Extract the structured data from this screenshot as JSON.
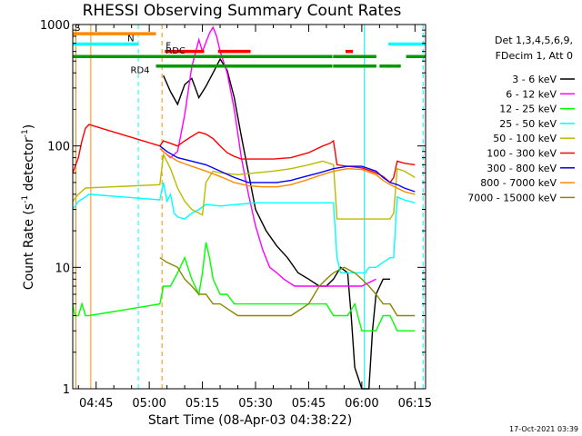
{
  "chart_data": {
    "type": "line",
    "title": "RHESSI Observing Summary Count Rates",
    "xlabel": "Start Time (08-Apr-03 04:38:22)",
    "ylabel_main": "Count Rate (s",
    "ylabel_sup1": "-1",
    "ylabel_mid": " detector",
    "ylabel_sup2": "-1",
    "ylabel_end": ")",
    "yscale": "log",
    "ylim": [
      1,
      1000
    ],
    "xlim_minutes": [
      278.4,
      378.0
    ],
    "x_ticks": [
      {
        "label": "04:45",
        "minute": 285
      },
      {
        "label": "05:00",
        "minute": 300
      },
      {
        "label": "05:15",
        "minute": 315
      },
      {
        "label": "05:30",
        "minute": 330
      },
      {
        "label": "05:45",
        "minute": 345
      },
      {
        "label": "06:00",
        "minute": 360
      },
      {
        "label": "06:15",
        "minute": 375
      }
    ],
    "y_ticks": [
      {
        "label": "1",
        "value": 1
      },
      {
        "label": "10",
        "value": 10
      },
      {
        "label": "100",
        "value": 100
      },
      {
        "label": "1000",
        "value": 1000
      }
    ],
    "legend_header": [
      "Det 1,3,4,5,6,9,",
      "FDecim 1, Att 0"
    ],
    "series": [
      {
        "name": "3 - 6 keV",
        "color": "#000000",
        "points": [
          [
            304,
            380
          ],
          [
            306,
            280
          ],
          [
            308,
            220
          ],
          [
            310,
            320
          ],
          [
            312,
            360
          ],
          [
            314,
            250
          ],
          [
            316,
            310
          ],
          [
            318,
            400
          ],
          [
            320,
            520
          ],
          [
            322,
            420
          ],
          [
            324,
            250
          ],
          [
            326,
            120
          ],
          [
            328,
            60
          ],
          [
            330,
            30
          ],
          [
            333,
            20
          ],
          [
            336,
            15
          ],
          [
            339,
            12
          ],
          [
            342,
            9
          ],
          [
            345,
            8
          ],
          [
            348,
            7
          ],
          [
            350,
            7
          ],
          [
            352,
            8
          ],
          [
            354,
            10
          ],
          [
            356,
            9
          ],
          [
            357,
            4
          ],
          [
            358,
            1.5
          ],
          [
            360,
            1
          ],
          [
            362,
            1
          ],
          [
            363,
            3
          ],
          [
            364,
            6
          ],
          [
            366,
            8
          ],
          [
            368,
            8
          ]
        ]
      },
      {
        "name": "6 - 12 keV",
        "color": "#ff00ff",
        "points": [
          [
            304,
            90
          ],
          [
            306,
            80
          ],
          [
            308,
            90
          ],
          [
            310,
            180
          ],
          [
            312,
            450
          ],
          [
            314,
            750
          ],
          [
            315,
            600
          ],
          [
            317,
            850
          ],
          [
            318,
            950
          ],
          [
            319,
            800
          ],
          [
            320,
            600
          ],
          [
            322,
            400
          ],
          [
            324,
            200
          ],
          [
            326,
            80
          ],
          [
            328,
            40
          ],
          [
            330,
            22
          ],
          [
            332,
            14
          ],
          [
            334,
            10
          ],
          [
            336,
            9
          ],
          [
            338,
            8
          ],
          [
            341,
            7
          ],
          [
            344,
            7
          ],
          [
            348,
            7
          ],
          [
            352,
            7
          ],
          [
            356,
            7
          ],
          [
            360,
            7
          ],
          [
            364,
            8
          ]
        ]
      },
      {
        "name": "12 - 25 keV",
        "color": "#00ff00",
        "points": [
          [
            278.4,
            5
          ],
          [
            279,
            4
          ],
          [
            280,
            4
          ],
          [
            281,
            5
          ],
          [
            282,
            4
          ],
          [
            283,
            4
          ],
          [
            303,
            5
          ],
          [
            304,
            7
          ],
          [
            306,
            7
          ],
          [
            308,
            9
          ],
          [
            310,
            12
          ],
          [
            312,
            8
          ],
          [
            314,
            6
          ],
          [
            315,
            9
          ],
          [
            316,
            16
          ],
          [
            317,
            12
          ],
          [
            318,
            8
          ],
          [
            320,
            6
          ],
          [
            322,
            6
          ],
          [
            324,
            5
          ],
          [
            330,
            5
          ],
          [
            340,
            5
          ],
          [
            350,
            5
          ],
          [
            352,
            4
          ],
          [
            356,
            4
          ],
          [
            358,
            5
          ],
          [
            360,
            3
          ],
          [
            362,
            3
          ],
          [
            364,
            3
          ],
          [
            366,
            4
          ],
          [
            368,
            4
          ],
          [
            370,
            3
          ],
          [
            372,
            3
          ],
          [
            375,
            3
          ]
        ]
      },
      {
        "name": "25 - 50 keV",
        "color": "#00ffff",
        "points": [
          [
            278.4,
            30
          ],
          [
            280,
            35
          ],
          [
            282,
            38
          ],
          [
            283,
            40
          ],
          [
            303,
            36
          ],
          [
            304,
            50
          ],
          [
            305,
            35
          ],
          [
            306,
            40
          ],
          [
            307,
            28
          ],
          [
            308,
            26
          ],
          [
            310,
            25
          ],
          [
            312,
            28
          ],
          [
            314,
            30
          ],
          [
            316,
            33
          ],
          [
            320,
            32
          ],
          [
            325,
            33
          ],
          [
            330,
            34
          ],
          [
            335,
            34
          ],
          [
            340,
            34
          ],
          [
            345,
            34
          ],
          [
            352,
            34
          ],
          [
            353,
            12
          ],
          [
            354,
            9
          ],
          [
            356,
            9
          ],
          [
            358,
            9
          ],
          [
            360,
            9
          ],
          [
            361,
            9
          ],
          [
            362,
            10
          ],
          [
            364,
            10
          ],
          [
            366,
            11
          ],
          [
            368,
            12
          ],
          [
            369,
            12
          ],
          [
            370,
            38
          ],
          [
            372,
            36
          ],
          [
            375,
            34
          ]
        ]
      },
      {
        "name": "50 - 100 keV",
        "color": "#bbbb00",
        "points": [
          [
            278.4,
            35
          ],
          [
            280,
            40
          ],
          [
            282,
            45
          ],
          [
            303,
            48
          ],
          [
            304,
            85
          ],
          [
            306,
            65
          ],
          [
            308,
            45
          ],
          [
            310,
            35
          ],
          [
            312,
            30
          ],
          [
            314,
            28
          ],
          [
            315,
            27
          ],
          [
            316,
            50
          ],
          [
            318,
            62
          ],
          [
            320,
            60
          ],
          [
            325,
            58
          ],
          [
            330,
            60
          ],
          [
            335,
            62
          ],
          [
            340,
            65
          ],
          [
            345,
            70
          ],
          [
            349,
            75
          ],
          [
            352,
            70
          ],
          [
            353,
            25
          ],
          [
            355,
            25
          ],
          [
            360,
            25
          ],
          [
            365,
            25
          ],
          [
            368,
            25
          ],
          [
            369,
            28
          ],
          [
            370,
            65
          ],
          [
            372,
            62
          ],
          [
            375,
            55
          ]
        ]
      },
      {
        "name": "100 - 300 keV",
        "color": "#ff0000",
        "points": [
          [
            278.4,
            60
          ],
          [
            280,
            80
          ],
          [
            281,
            110
          ],
          [
            282,
            140
          ],
          [
            283,
            150
          ],
          [
            303,
            100
          ],
          [
            304,
            110
          ],
          [
            306,
            105
          ],
          [
            308,
            100
          ],
          [
            310,
            110
          ],
          [
            312,
            120
          ],
          [
            314,
            130
          ],
          [
            316,
            125
          ],
          [
            318,
            115
          ],
          [
            320,
            100
          ],
          [
            322,
            88
          ],
          [
            324,
            82
          ],
          [
            326,
            78
          ],
          [
            330,
            78
          ],
          [
            335,
            78
          ],
          [
            340,
            80
          ],
          [
            345,
            88
          ],
          [
            349,
            100
          ],
          [
            351,
            105
          ],
          [
            352,
            110
          ],
          [
            353,
            70
          ],
          [
            356,
            68
          ],
          [
            360,
            66
          ],
          [
            364,
            60
          ],
          [
            366,
            56
          ],
          [
            368,
            50
          ],
          [
            369,
            55
          ],
          [
            370,
            75
          ],
          [
            372,
            72
          ],
          [
            375,
            70
          ]
        ]
      },
      {
        "name": "300 - 800 keV",
        "color": "#0000ff",
        "points": [
          [
            303,
            100
          ],
          [
            305,
            90
          ],
          [
            308,
            80
          ],
          [
            312,
            75
          ],
          [
            316,
            70
          ],
          [
            320,
            62
          ],
          [
            324,
            55
          ],
          [
            328,
            50
          ],
          [
            332,
            50
          ],
          [
            336,
            50
          ],
          [
            340,
            52
          ],
          [
            344,
            56
          ],
          [
            348,
            60
          ],
          [
            352,
            65
          ],
          [
            356,
            68
          ],
          [
            360,
            68
          ],
          [
            364,
            62
          ],
          [
            366,
            55
          ],
          [
            368,
            50
          ],
          [
            370,
            48
          ],
          [
            372,
            45
          ],
          [
            375,
            42
          ]
        ]
      },
      {
        "name": "800 - 7000 keV",
        "color": "#ff8800",
        "points": [
          [
            303,
            95
          ],
          [
            305,
            85
          ],
          [
            308,
            75
          ],
          [
            312,
            68
          ],
          [
            316,
            62
          ],
          [
            320,
            56
          ],
          [
            324,
            50
          ],
          [
            328,
            47
          ],
          [
            332,
            46
          ],
          [
            336,
            46
          ],
          [
            340,
            48
          ],
          [
            344,
            52
          ],
          [
            348,
            57
          ],
          [
            352,
            62
          ],
          [
            356,
            65
          ],
          [
            360,
            64
          ],
          [
            364,
            58
          ],
          [
            366,
            52
          ],
          [
            368,
            48
          ],
          [
            370,
            45
          ],
          [
            372,
            42
          ],
          [
            375,
            40
          ]
        ]
      },
      {
        "name": "7000 - 15000 keV",
        "color": "#888800",
        "points": [
          [
            303,
            12
          ],
          [
            305,
            11
          ],
          [
            308,
            10
          ],
          [
            310,
            8
          ],
          [
            312,
            7
          ],
          [
            314,
            6
          ],
          [
            316,
            6
          ],
          [
            318,
            5
          ],
          [
            320,
            5
          ],
          [
            325,
            4
          ],
          [
            330,
            4
          ],
          [
            335,
            4
          ],
          [
            340,
            4
          ],
          [
            345,
            5
          ],
          [
            348,
            7
          ],
          [
            350,
            8
          ],
          [
            352,
            9
          ],
          [
            355,
            10
          ],
          [
            358,
            9
          ],
          [
            360,
            8
          ],
          [
            362,
            7
          ],
          [
            364,
            6
          ],
          [
            366,
            5
          ],
          [
            368,
            5
          ],
          [
            370,
            4
          ],
          [
            372,
            4
          ],
          [
            375,
            4
          ]
        ]
      }
    ],
    "flag_bars": [
      {
        "label": "S",
        "color": "#ff8800",
        "value": 840,
        "segments": [
          [
            278.4,
            301.9
          ]
        ]
      },
      {
        "label": "N",
        "color": "#00ffff",
        "value": 690,
        "segments": [
          [
            278.4,
            297.0
          ],
          [
            367.5,
            378.0
          ]
        ]
      },
      {
        "label": "F",
        "color": "#ff0000",
        "value": 600,
        "segments": [
          [
            304.4,
            315.5
          ],
          [
            319.4,
            328.6
          ],
          [
            355.4,
            357.5
          ]
        ]
      },
      {
        "label": "RDC",
        "color": "#009900",
        "value": 545,
        "segments": [
          [
            278.4,
            351.7
          ],
          [
            351.9,
            364.1
          ],
          [
            372.5,
            378.0
          ]
        ]
      },
      {
        "label": "RD4",
        "color": "#009900",
        "value": 455,
        "segments": [
          [
            301.9,
            351.7
          ],
          [
            351.9,
            364.1
          ],
          [
            365.0,
            371.0
          ]
        ]
      }
    ],
    "vertical_markers": [
      {
        "minute": 279.3,
        "color": "#ff8800",
        "style": "solid"
      },
      {
        "minute": 283.5,
        "color": "#ff8800",
        "style": "solid"
      },
      {
        "minute": 296.9,
        "color": "#00ffff",
        "style": "dashed"
      },
      {
        "minute": 303.6,
        "color": "#ff8800",
        "style": "dashed"
      },
      {
        "minute": 360.7,
        "color": "#00ffff",
        "style": "solid"
      },
      {
        "minute": 377.3,
        "color": "#00ffff",
        "style": "dashed"
      }
    ],
    "timestamp": "17-Oct-2021 03:39"
  }
}
